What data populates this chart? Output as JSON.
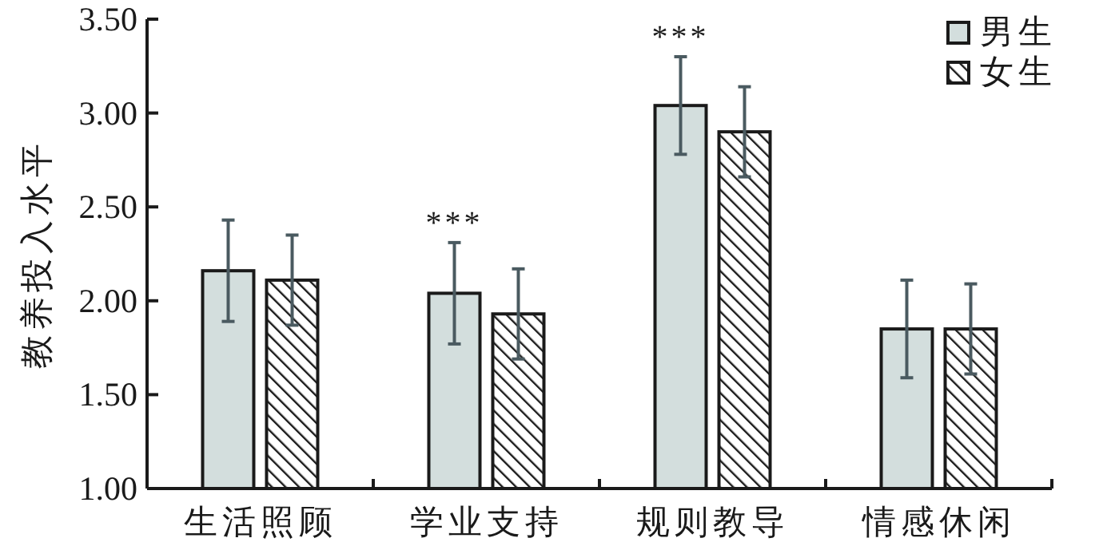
{
  "chart_data": {
    "type": "bar",
    "ylabel": "教养投入水平",
    "categories": [
      "生活照顾",
      "学业支持",
      "规则教导",
      "情感休闲"
    ],
    "series": [
      {
        "name": "男生",
        "color": "#d3dedd",
        "values": [
          2.16,
          2.04,
          3.04,
          1.85
        ],
        "errors": [
          0.27,
          0.27,
          0.26,
          0.26
        ]
      },
      {
        "name": "女生",
        "color": "#1a1a1a",
        "values": [
          2.11,
          1.93,
          2.9,
          1.85
        ],
        "errors": [
          0.24,
          0.24,
          0.24,
          0.24
        ]
      }
    ],
    "ylim": [
      1.0,
      3.5
    ],
    "yticks": [
      {
        "value": 1,
        "label": "1.00"
      },
      {
        "value": 1.5,
        "label": "1.50"
      },
      {
        "value": 2,
        "label": "2.00"
      },
      {
        "value": 2.5,
        "label": "2.50"
      },
      {
        "value": 3,
        "label": "3.00"
      },
      {
        "value": 3.5,
        "label": "3.50"
      }
    ],
    "annotations": [
      {
        "text": "***",
        "x": "学业支持",
        "y": 2.04
      },
      {
        "text": "***",
        "x": "规则教导",
        "y": 3.04
      }
    ],
    "legend": "top right",
    "grid": false
  }
}
